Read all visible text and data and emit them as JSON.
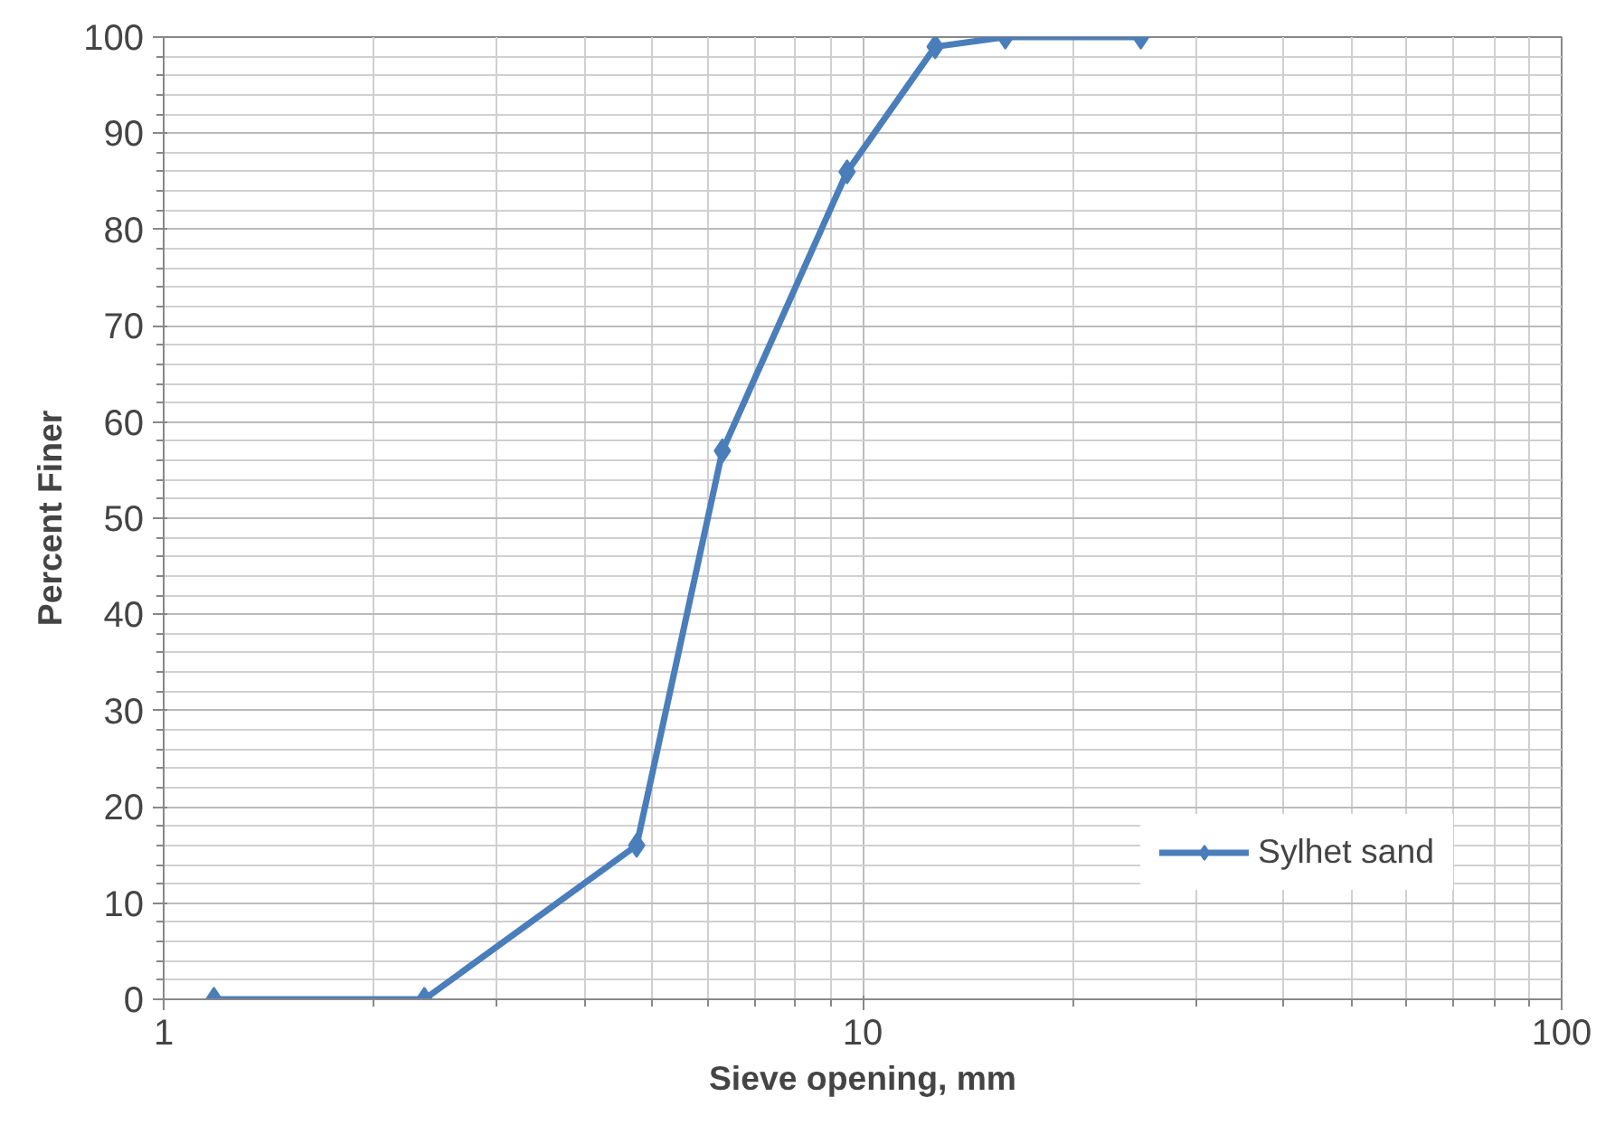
{
  "chart_data": {
    "type": "line",
    "xlabel": "Sieve opening, mm",
    "ylabel": "Percent Finer",
    "x": [
      1.18,
      2.36,
      4.75,
      6.3,
      9.5,
      12.7,
      16,
      25
    ],
    "series": [
      {
        "name": "Sylhet sand",
        "color": "#4a7ebb",
        "values": [
          0,
          0,
          16,
          57,
          86,
          99,
          100,
          100
        ]
      }
    ],
    "log": "x",
    "xlim": [
      1,
      100
    ],
    "xticks": [
      1,
      10,
      100
    ],
    "ylim": [
      0,
      100
    ],
    "yticks": [
      0,
      10,
      20,
      30,
      40,
      50,
      60,
      70,
      80,
      90,
      100
    ],
    "grid": true,
    "legend": "bottom right",
    "marker": "diamond",
    "line_style": "solid"
  }
}
